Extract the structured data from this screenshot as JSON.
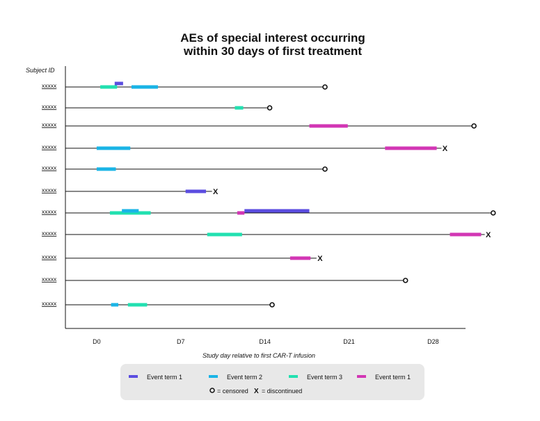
{
  "chart_data": {
    "type": "swimmer",
    "title_line1": "AEs of special interest occurring",
    "title_line2": "within 30 days of first treatment",
    "ylabel": "Subject ID",
    "xlabel": "Study day relative to first CAR-T infusion",
    "x_ticks": [
      {
        "value": 0,
        "label": "D0"
      },
      {
        "value": 7,
        "label": "D7"
      },
      {
        "value": 14,
        "label": "D14"
      },
      {
        "value": 21,
        "label": "D21"
      },
      {
        "value": 28,
        "label": "D28"
      }
    ],
    "xlim": [
      -2.6,
      30.7
    ],
    "colors": {
      "event1": "#5b4de0",
      "event2": "#1ab4e6",
      "event3": "#22e0b0",
      "event4": "#d236b4"
    },
    "legend": {
      "items": [
        {
          "label": "Event term 1",
          "color_key": "event1"
        },
        {
          "label": "Event term 2",
          "color_key": "event2"
        },
        {
          "label": "Event term 3",
          "color_key": "event3"
        },
        {
          "label": "Event term 1",
          "color_key": "event4"
        }
      ],
      "censored_symbol": "○",
      "censored_label": "= censored",
      "discontinued_symbol": "X",
      "discontinued_label": "= discontinued"
    },
    "subjects": [
      {
        "id": "xxxxx",
        "end": 18.8,
        "end_marker": "censored",
        "events": [
          {
            "key": "event3",
            "start": 0.3,
            "end": 1.7,
            "dy": 0
          },
          {
            "key": "event1",
            "start": 1.5,
            "end": 2.2,
            "dy": -5
          },
          {
            "key": "event2",
            "start": 2.9,
            "end": 5.1,
            "dy": 0
          }
        ]
      },
      {
        "id": "xxxxx",
        "end": 14.2,
        "end_marker": "censored",
        "events": [
          {
            "key": "event3",
            "start": 11.5,
            "end": 12.2,
            "dy": 0
          }
        ]
      },
      {
        "id": "xxxxx",
        "end": 31.2,
        "end_marker": "censored",
        "events": [
          {
            "key": "event4",
            "start": 17.7,
            "end": 20.9,
            "dy": 0
          }
        ]
      },
      {
        "id": "xxxxx",
        "end": 28.7,
        "end_marker": "discontinued",
        "events": [
          {
            "key": "event2",
            "start": 0.0,
            "end": 2.8,
            "dy": 0
          },
          {
            "key": "event4",
            "start": 24.0,
            "end": 28.3,
            "dy": 0
          }
        ]
      },
      {
        "id": "xxxxx",
        "end": 18.8,
        "end_marker": "censored",
        "events": [
          {
            "key": "event2",
            "start": 0.0,
            "end": 1.6,
            "dy": 0
          }
        ]
      },
      {
        "id": "xxxxx",
        "end": 9.6,
        "end_marker": "discontinued",
        "events": [
          {
            "key": "event1",
            "start": 7.4,
            "end": 9.1,
            "dy": 0
          }
        ]
      },
      {
        "id": "xxxxx",
        "end": 32.8,
        "end_marker": "censored",
        "events": [
          {
            "key": "event3",
            "start": 1.1,
            "end": 4.5,
            "dy": 0
          },
          {
            "key": "event2",
            "start": 2.1,
            "end": 3.5,
            "dy": -3
          },
          {
            "key": "event4",
            "start": 11.7,
            "end": 12.3,
            "dy": 0
          },
          {
            "key": "event1",
            "start": 12.3,
            "end": 17.7,
            "dy": -3
          }
        ]
      },
      {
        "id": "xxxxx",
        "end": 32.3,
        "end_marker": "discontinued",
        "events": [
          {
            "key": "event3",
            "start": 9.2,
            "end": 12.1,
            "dy": 0
          },
          {
            "key": "event4",
            "start": 29.4,
            "end": 32.0,
            "dy": 0
          }
        ]
      },
      {
        "id": "xxxxx",
        "end": 18.3,
        "end_marker": "discontinued",
        "events": [
          {
            "key": "event4",
            "start": 16.1,
            "end": 17.8,
            "dy": 0
          }
        ]
      },
      {
        "id": "xxxxx",
        "end": 25.5,
        "end_marker": "censored",
        "events": []
      },
      {
        "id": "xxxxx",
        "end": 14.4,
        "end_marker": "censored",
        "events": [
          {
            "key": "event2",
            "start": 1.2,
            "end": 1.8,
            "dy": 0
          },
          {
            "key": "event3",
            "start": 2.6,
            "end": 4.2,
            "dy": 0
          }
        ]
      }
    ]
  }
}
